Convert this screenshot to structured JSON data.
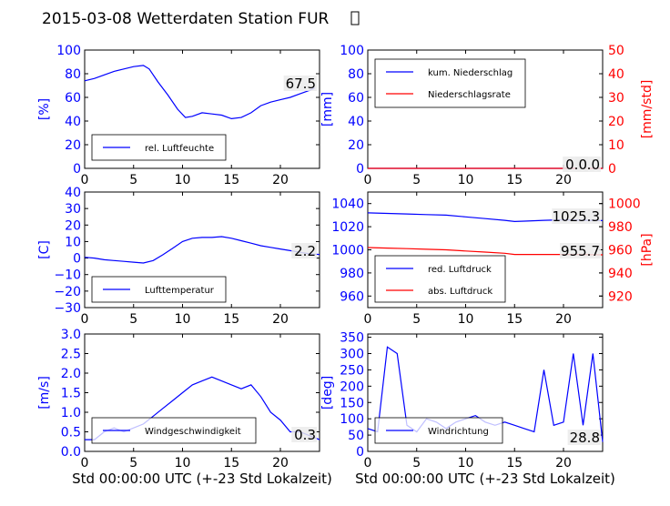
{
  "title": "2015-03-08 Wetterdaten Station FUR",
  "title_glyph": "▯",
  "chart_data": [
    {
      "type": "line",
      "ylabel": "[%]",
      "xlim": [
        0,
        24
      ],
      "ylim": [
        0,
        100
      ],
      "xticks": [
        "0",
        "5",
        "10",
        "15",
        "20"
      ],
      "yticks": [
        "0",
        "20",
        "40",
        "60",
        "80",
        "100"
      ],
      "legend_placement": "lower-left",
      "current_value": "67.5",
      "series": [
        {
          "name": "rel. Luftfeuchte",
          "color": "#0000ff",
          "axis": "left",
          "x": [
            0,
            1,
            2,
            3,
            4,
            5,
            6,
            6.6,
            7.5,
            8.5,
            9.5,
            10.3,
            11,
            12,
            13,
            14,
            15,
            16,
            17,
            18,
            19,
            20,
            21,
            22,
            23,
            23.5
          ],
          "y": [
            74,
            76,
            79,
            82,
            84,
            86,
            87,
            84,
            73,
            62,
            50,
            43,
            44,
            47,
            46,
            45,
            42,
            43,
            47,
            53,
            56,
            58,
            60,
            63,
            66,
            68
          ]
        }
      ]
    },
    {
      "type": "line",
      "ylabel": "[mm]",
      "ylabel_right": "[mm/std]",
      "xlim": [
        0,
        24
      ],
      "ylim": [
        0,
        100
      ],
      "ylim_right": [
        0,
        50
      ],
      "xticks": [
        "0",
        "5",
        "10",
        "15",
        "20"
      ],
      "yticks": [
        "0",
        "20",
        "40",
        "60",
        "80",
        "100"
      ],
      "yticks_right": [
        "0",
        "10",
        "20",
        "30",
        "40",
        "50"
      ],
      "legend_placement": "upper-left",
      "current_value": "0.0",
      "current_value_2": "0.0",
      "series": [
        {
          "name": "kum. Niederschlag",
          "color": "#0000ff",
          "axis": "left",
          "x": [
            0,
            24
          ],
          "y": [
            0,
            0
          ]
        },
        {
          "name": "Niederschlagsrate",
          "color": "#ff0000",
          "axis": "right",
          "x": [
            0,
            24
          ],
          "y": [
            0,
            0
          ]
        }
      ]
    },
    {
      "type": "line",
      "ylabel": "[C]",
      "xlim": [
        0,
        24
      ],
      "ylim": [
        -30,
        40
      ],
      "xticks": [
        "0",
        "5",
        "10",
        "15",
        "20"
      ],
      "yticks": [
        "−30",
        "−20",
        "−10",
        "0",
        "10",
        "20",
        "30",
        "40"
      ],
      "legend_placement": "lower-left",
      "current_value": "2.2",
      "series": [
        {
          "name": "Lufttemperatur",
          "color": "#0000ff",
          "axis": "left",
          "x": [
            0,
            1,
            2,
            3,
            4,
            5,
            6,
            7,
            8,
            9,
            10,
            11,
            12,
            13,
            14,
            15,
            16,
            17,
            18,
            19,
            20,
            21,
            22,
            23,
            24
          ],
          "y": [
            0.5,
            0,
            -1,
            -1.5,
            -2,
            -2.5,
            -3,
            -1.5,
            2,
            6,
            10,
            12,
            12.5,
            12.5,
            13,
            12,
            10.5,
            9,
            7.5,
            6.5,
            5.5,
            4.5,
            3.5,
            2.5,
            2.2
          ]
        }
      ]
    },
    {
      "type": "line",
      "ylabel_right": "[hPa]",
      "xlim": [
        0,
        24
      ],
      "ylim": [
        950,
        1050
      ],
      "ylim_right": [
        910,
        1010
      ],
      "xticks": [
        "0",
        "5",
        "10",
        "15",
        "20"
      ],
      "yticks": [
        "960",
        "980",
        "1000",
        "1020",
        "1040"
      ],
      "yticks_right": [
        "920",
        "940",
        "960",
        "980",
        "1000"
      ],
      "legend_placement": "lower-left",
      "current_value": "1025.3",
      "current_value_2": "955.7",
      "series": [
        {
          "name": "red. Luftdruck",
          "color": "#0000ff",
          "axis": "left",
          "x": [
            0,
            2,
            4,
            6,
            8,
            10,
            12,
            14,
            15,
            16,
            18,
            20,
            22,
            24
          ],
          "y": [
            1032,
            1031.5,
            1031,
            1030.5,
            1030,
            1028.5,
            1027,
            1025.5,
            1024.5,
            1024.8,
            1025.5,
            1026,
            1025.6,
            1025.3
          ]
        },
        {
          "name": "abs. Luftdruck",
          "color": "#ff0000",
          "axis": "right",
          "x": [
            0,
            2,
            4,
            6,
            8,
            10,
            12,
            14,
            15,
            16,
            18,
            20,
            22,
            24
          ],
          "y": [
            962,
            961.5,
            961,
            960.5,
            960,
            959,
            958,
            957,
            956,
            956,
            956,
            956,
            955.9,
            955.7
          ]
        }
      ]
    },
    {
      "type": "line",
      "ylabel": "[m/s]",
      "xlabel": "Std 00:00:00 UTC (+-23 Std Lokalzeit)",
      "xlim": [
        0,
        24
      ],
      "ylim": [
        0,
        3
      ],
      "xticks": [
        "0",
        "5",
        "10",
        "15",
        "20"
      ],
      "yticks": [
        "0.0",
        "0.5",
        "1.0",
        "1.5",
        "2.0",
        "2.5",
        "3.0"
      ],
      "legend_placement": "lower-center",
      "current_value": "0.3",
      "series": [
        {
          "name": "Windgeschwindigkeit",
          "color": "#0000ff",
          "axis": "left",
          "x": [
            0,
            1,
            2,
            3,
            4,
            5,
            6,
            7,
            8,
            9,
            10,
            11,
            12,
            13,
            14,
            15,
            16,
            17,
            18,
            19,
            20,
            21,
            22,
            23,
            24
          ],
          "y": [
            0.3,
            0.3,
            0.5,
            0.6,
            0.5,
            0.6,
            0.7,
            0.9,
            1.1,
            1.3,
            1.5,
            1.7,
            1.8,
            1.9,
            1.8,
            1.7,
            1.6,
            1.7,
            1.4,
            1.0,
            0.8,
            0.5,
            0.5,
            0.4,
            0.3
          ]
        }
      ]
    },
    {
      "type": "line",
      "ylabel": "[deg]",
      "xlabel": "Std 00:00:00 UTC (+-23 Std Lokalzeit)",
      "xlim": [
        0,
        24
      ],
      "ylim": [
        0,
        360
      ],
      "xticks": [
        "0",
        "5",
        "10",
        "15",
        "20"
      ],
      "yticks": [
        "0",
        "50",
        "100",
        "150",
        "200",
        "250",
        "300",
        "350"
      ],
      "legend_placement": "lower-left",
      "current_value": "28.8",
      "series": [
        {
          "name": "Windrichtung",
          "color": "#0000ff",
          "axis": "left",
          "x": [
            0,
            1,
            2,
            3,
            4,
            5,
            6,
            7,
            8,
            9,
            10,
            11,
            12,
            13,
            14,
            15,
            16,
            17,
            18,
            19,
            20,
            21,
            22,
            23,
            24
          ],
          "y": [
            70,
            60,
            320,
            300,
            80,
            60,
            100,
            90,
            70,
            90,
            100,
            110,
            90,
            80,
            90,
            80,
            70,
            60,
            250,
            80,
            90,
            300,
            80,
            300,
            29
          ]
        }
      ]
    }
  ]
}
